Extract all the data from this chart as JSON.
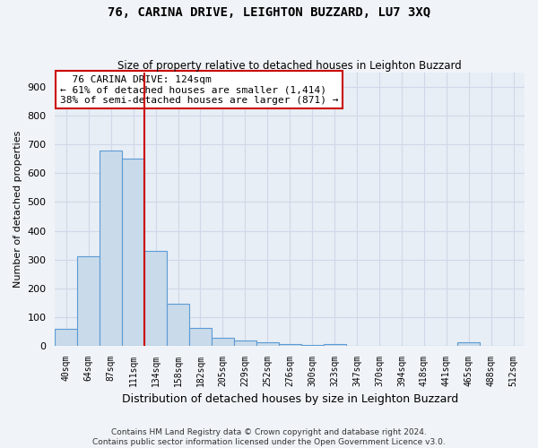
{
  "title": "76, CARINA DRIVE, LEIGHTON BUZZARD, LU7 3XQ",
  "subtitle": "Size of property relative to detached houses in Leighton Buzzard",
  "xlabel": "Distribution of detached houses by size in Leighton Buzzard",
  "ylabel": "Number of detached properties",
  "bins": [
    "40sqm",
    "64sqm",
    "87sqm",
    "111sqm",
    "134sqm",
    "158sqm",
    "182sqm",
    "205sqm",
    "229sqm",
    "252sqm",
    "276sqm",
    "300sqm",
    "323sqm",
    "347sqm",
    "370sqm",
    "394sqm",
    "418sqm",
    "441sqm",
    "465sqm",
    "488sqm",
    "512sqm"
  ],
  "bar_heights": [
    60,
    310,
    680,
    650,
    330,
    148,
    62,
    30,
    18,
    12,
    8,
    5,
    8,
    2,
    0,
    0,
    0,
    0,
    12,
    0,
    0
  ],
  "bar_color": "#c9daea",
  "bar_edge_color": "#5b9bd5",
  "property_line_x": 3.5,
  "annotation_line1": "76 CARINA DRIVE: 124sqm",
  "annotation_line2": "← 61% of detached houses are smaller (1,414)",
  "annotation_line3": "38% of semi-detached houses are larger (871) →",
  "annotation_box_color": "#ffffff",
  "annotation_box_edge": "#cc0000",
  "vline_color": "#cc0000",
  "ylim": [
    0,
    950
  ],
  "yticks": [
    0,
    100,
    200,
    300,
    400,
    500,
    600,
    700,
    800,
    900
  ],
  "grid_color": "#d0d8e8",
  "background_color": "#e8eef5",
  "fig_background": "#f0f4f8",
  "footer_line1": "Contains HM Land Registry data © Crown copyright and database right 2024.",
  "footer_line2": "Contains public sector information licensed under the Open Government Licence v3.0."
}
